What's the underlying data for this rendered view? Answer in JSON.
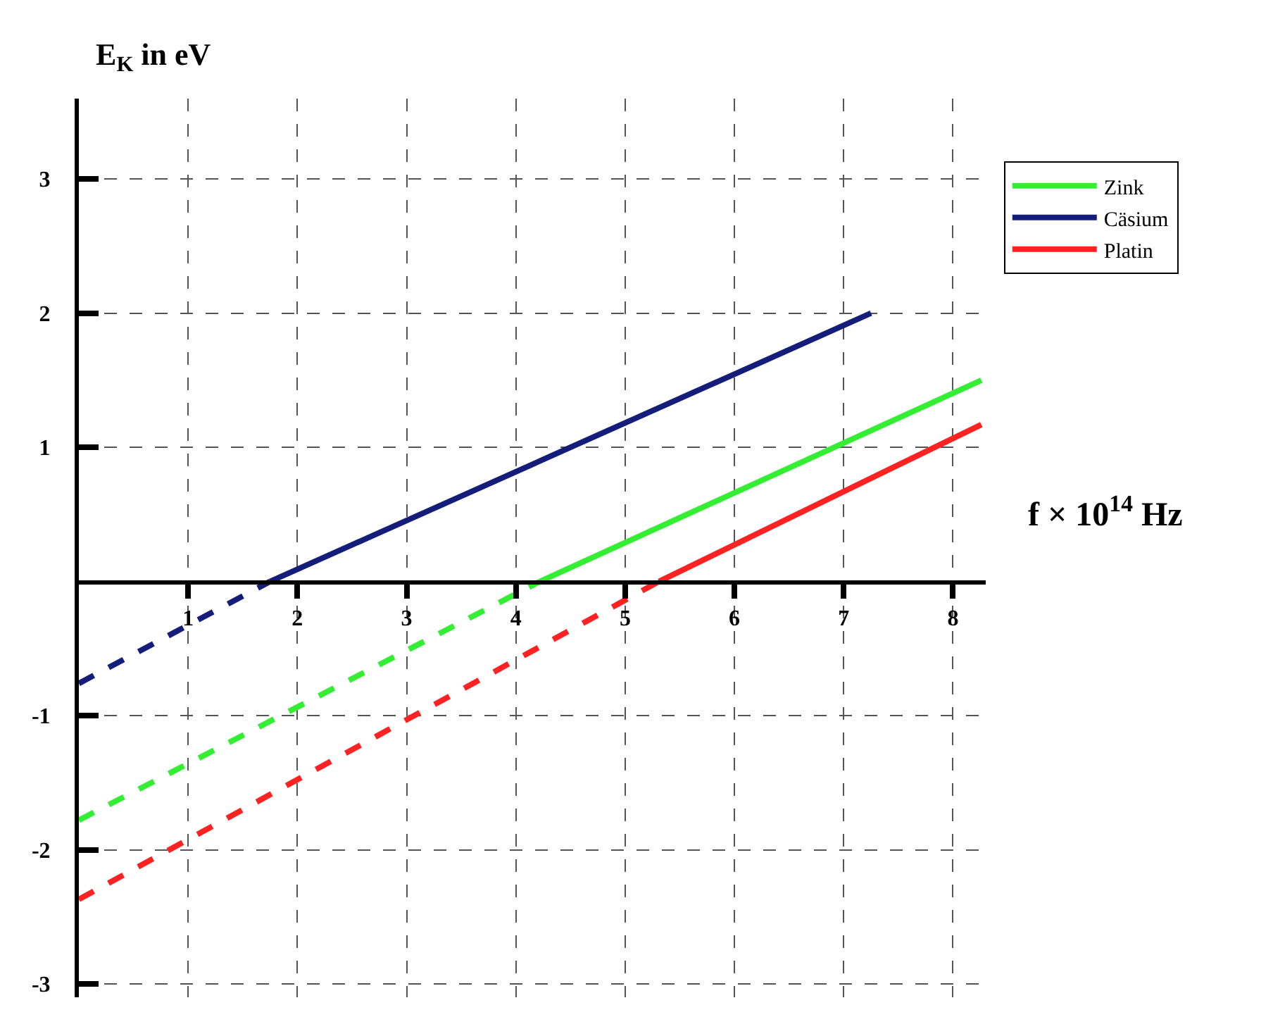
{
  "chart_data": {
    "type": "line",
    "xlabel": "f × 10$^{14}$ Hz",
    "ylabel": "E$_{K}$ in eV",
    "xlim": [
      0,
      8.3
    ],
    "xticks": [
      1,
      2,
      3,
      4,
      5,
      6,
      7,
      8
    ],
    "ylim": [
      -3.1,
      3.6
    ],
    "yticks": [
      -3,
      -2,
      -1,
      1,
      2,
      3
    ],
    "grid": true,
    "legend": "top right",
    "marker": "none",
    "series": [
      {
        "name": "Zink",
        "color": "#33ee33",
        "line_style": "solid",
        "x": [
          4.22,
          8.26
        ],
        "values": [
          0,
          1.5
        ]
      },
      {
        "name": "Cäsium",
        "color": "#141e7a",
        "line_style": "solid",
        "x": [
          1.75,
          7.25
        ],
        "values": [
          0,
          2
        ]
      },
      {
        "name": "Platin",
        "color": "#ff2222",
        "line_style": "solid",
        "x": [
          5.31,
          8.26
        ],
        "values": [
          0,
          1.17
        ]
      },
      {
        "color": "#33ee33",
        "line_style": "dashed",
        "x": [
          0,
          4.22
        ],
        "values": [
          -1.78,
          0
        ]
      },
      {
        "color": "#141e7a",
        "line_style": "dashed",
        "x": [
          0,
          1.75
        ],
        "values": [
          -0.76,
          0
        ]
      },
      {
        "color": "#ff2222",
        "line_style": "dashed",
        "x": [
          0,
          5.31
        ],
        "values": [
          -2.37,
          0
        ]
      }
    ]
  }
}
